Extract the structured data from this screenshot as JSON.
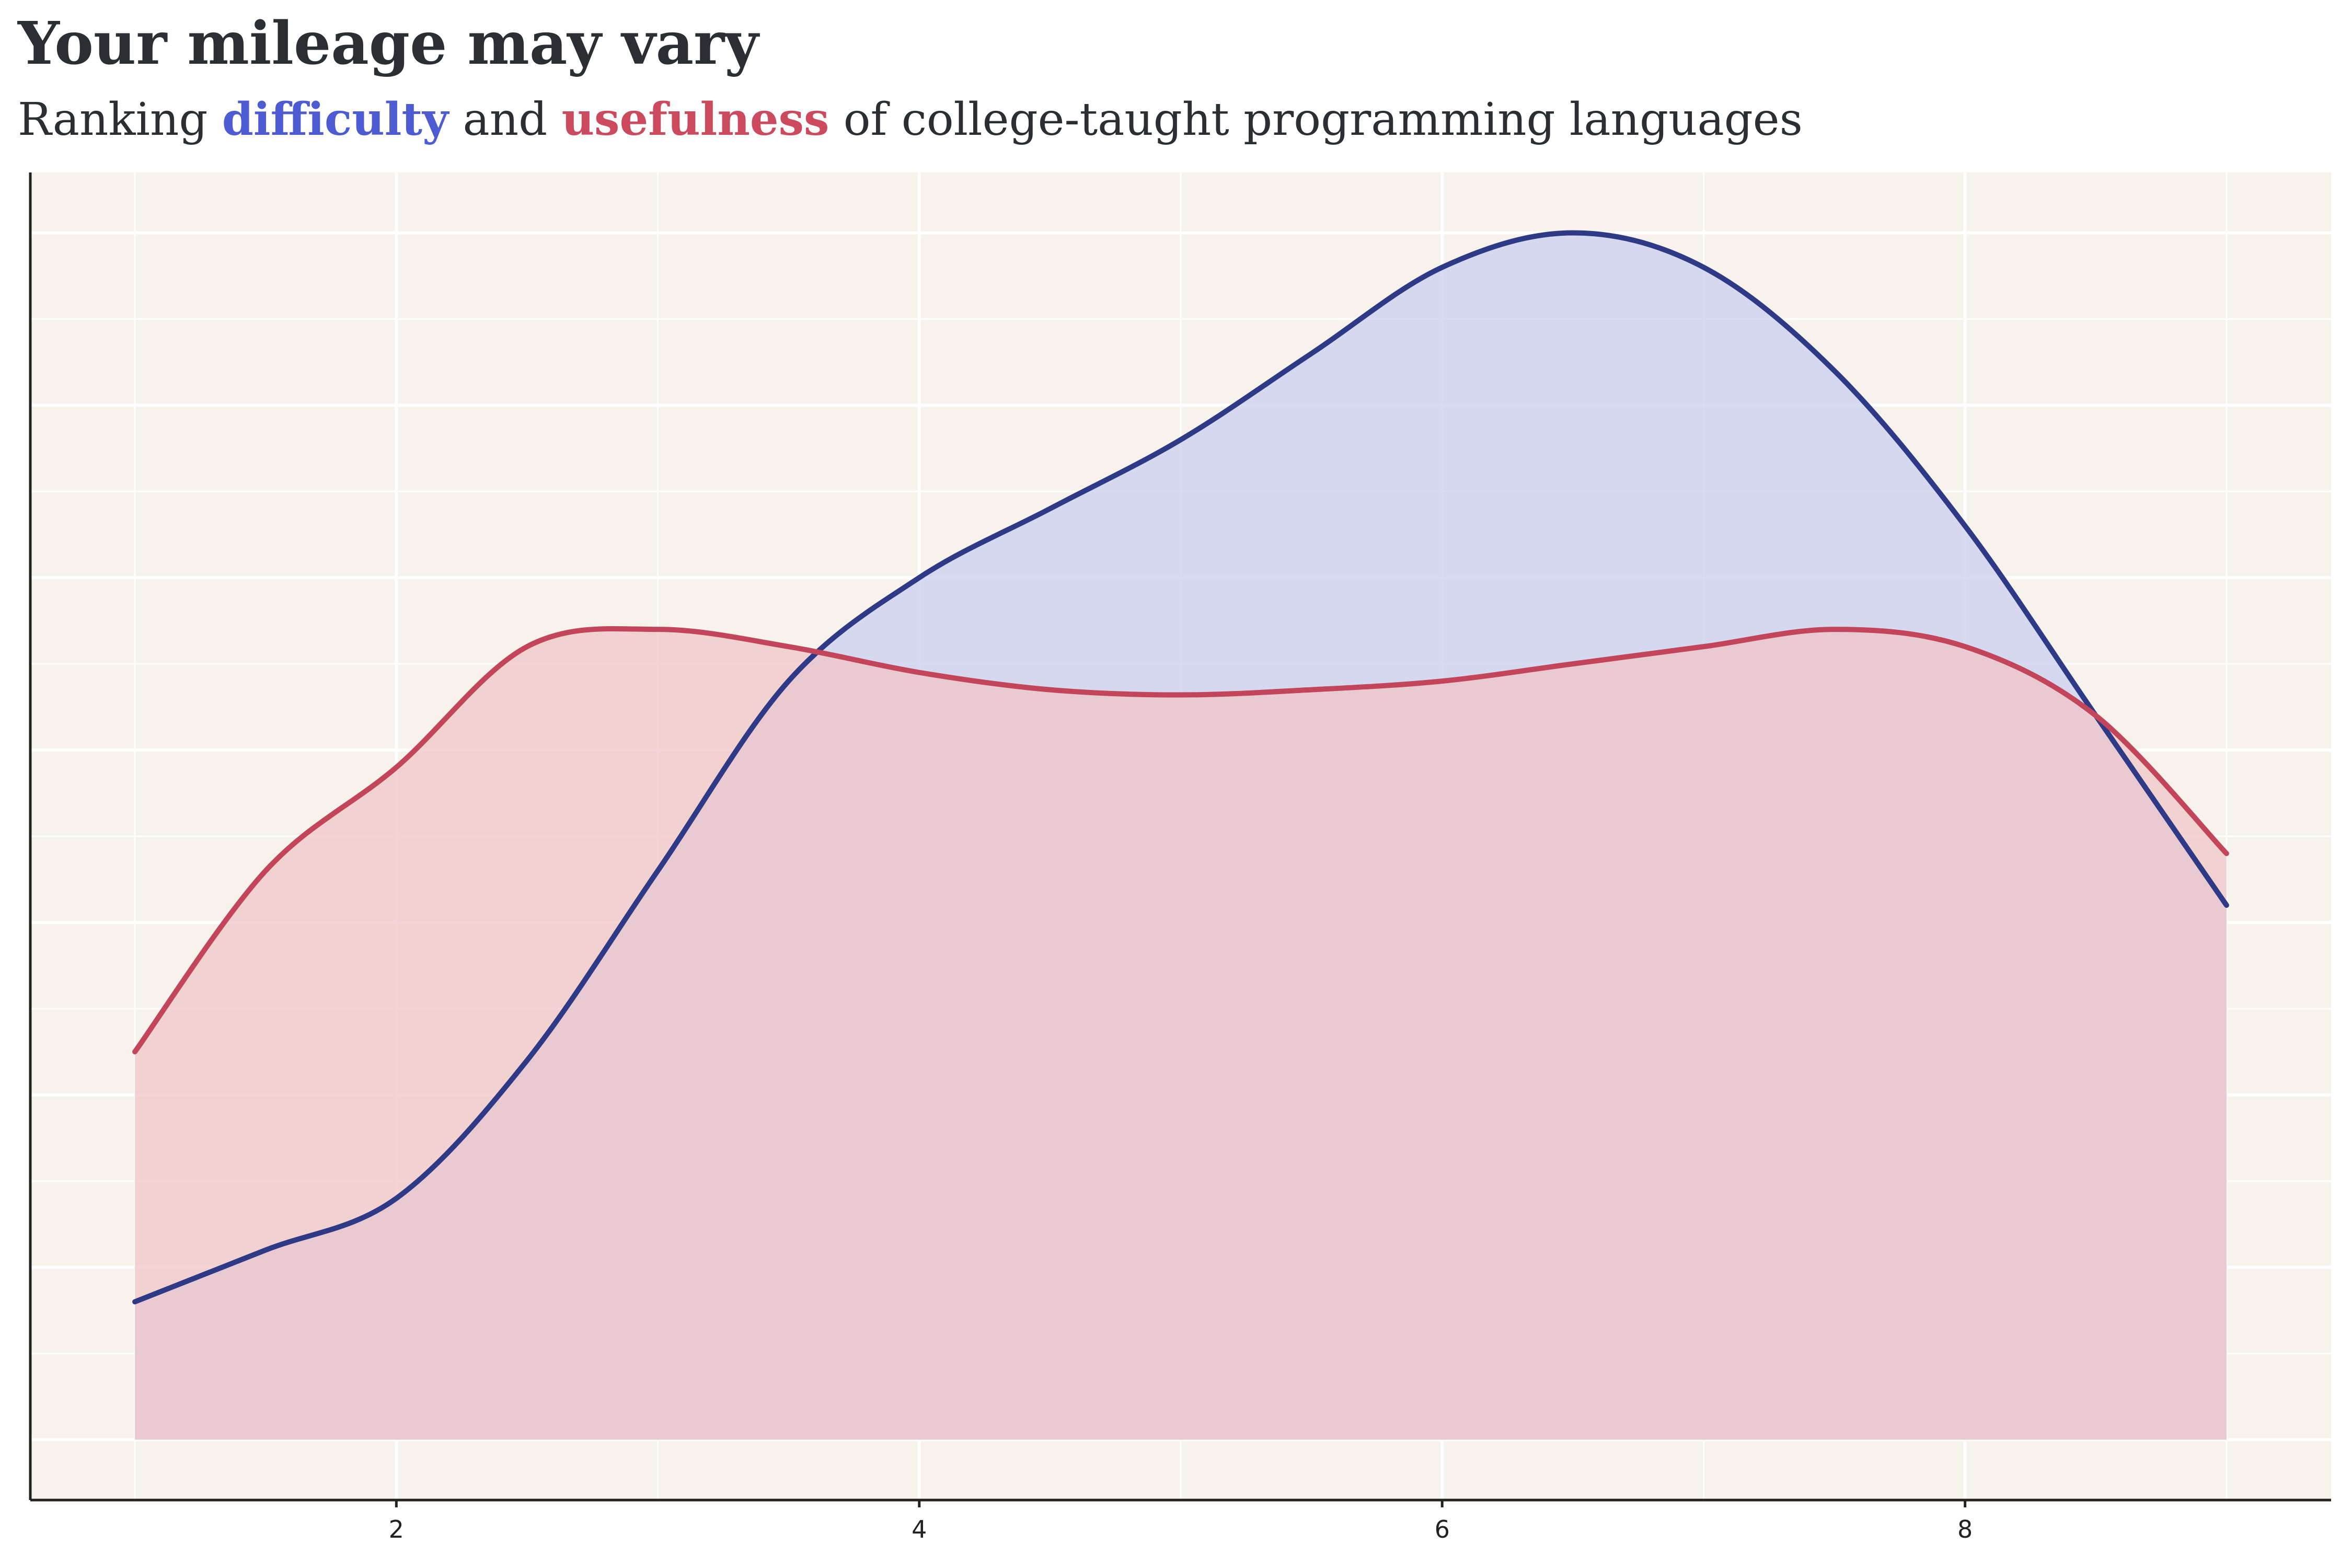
{
  "title": "Your mileage may vary",
  "subtitle": {
    "prefix": "Ranking ",
    "highlight_1": "difficulty",
    "middle": " and ",
    "highlight_2": "usefulness",
    "suffix": " of college-taught  programming  languages"
  },
  "colors": {
    "panel_background": "#f8f2ec",
    "grid": "#ffffff",
    "difficulty_line": "#2e3a85",
    "difficulty_fill": "#c9cdf0",
    "usefulness_line": "#c24559",
    "usefulness_fill": "#f0c4c6",
    "difficulty_text": "#4e5cd4",
    "usefulness_text": "#cc4a5e"
  },
  "chart_data": {
    "type": "area",
    "title": "Your mileage may vary",
    "subtitle": "Ranking difficulty and usefulness of college-taught programming languages",
    "xlabel": "",
    "ylabel": "",
    "xlim": [
      0.6,
      9.4
    ],
    "ylim": [
      -0.035,
      0.735
    ],
    "x_ticks": [
      2,
      4,
      6,
      8
    ],
    "y_ticks_labeled": false,
    "grid": true,
    "legend": "none (colored words in subtitle)",
    "series": [
      {
        "name": "difficulty",
        "x": [
          1.0,
          1.5,
          2.0,
          2.5,
          3.0,
          3.5,
          4.0,
          4.5,
          5.0,
          5.5,
          6.0,
          6.5,
          7.0,
          7.5,
          8.0,
          8.5,
          9.0
        ],
        "y": [
          0.08,
          0.11,
          0.14,
          0.22,
          0.33,
          0.44,
          0.5,
          0.54,
          0.58,
          0.63,
          0.68,
          0.7,
          0.68,
          0.62,
          0.53,
          0.42,
          0.31
        ]
      },
      {
        "name": "usefulness",
        "x": [
          1.0,
          1.5,
          2.0,
          2.5,
          3.0,
          3.5,
          4.0,
          4.5,
          5.0,
          5.5,
          6.0,
          6.5,
          7.0,
          7.5,
          8.0,
          8.5,
          9.0
        ],
        "y": [
          0.225,
          0.33,
          0.39,
          0.46,
          0.47,
          0.46,
          0.445,
          0.435,
          0.432,
          0.435,
          0.44,
          0.45,
          0.46,
          0.47,
          0.46,
          0.42,
          0.34
        ]
      }
    ]
  }
}
